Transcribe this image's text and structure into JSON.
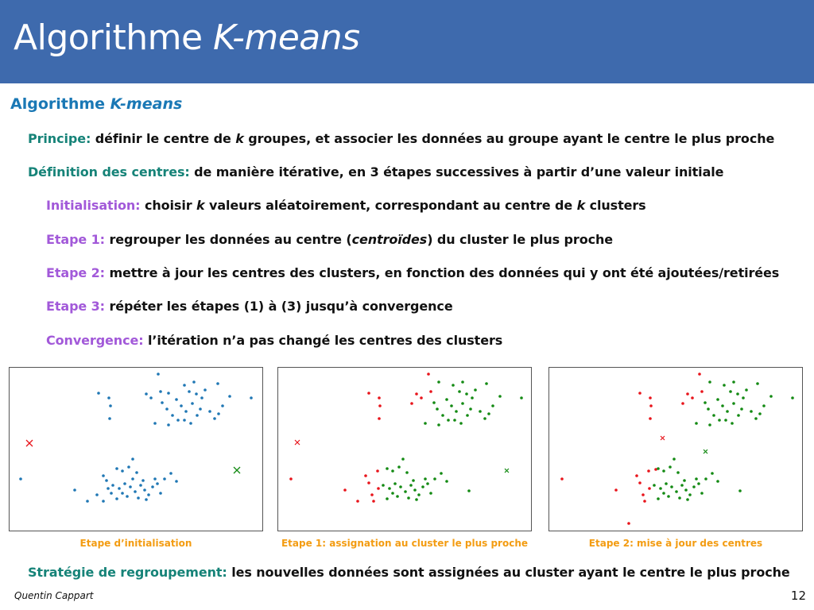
{
  "header": {
    "title_prefix": "Algorithme ",
    "title_italic": "K-means"
  },
  "block": {
    "title_prefix": "Algorithme ",
    "title_italic": "K-means"
  },
  "principe": {
    "label": "Principe:",
    "text1": " définir le centre de ",
    "k": "k",
    "text2": " groupes, et associer les données au groupe ayant le centre le plus proche"
  },
  "definition": {
    "label": "Définition des centres:",
    "text": " de manière itérative, en 3 étapes successives à partir d’une valeur initiale"
  },
  "init": {
    "label": "Initialisation:",
    "text1": " choisir ",
    "k1": "k",
    "text2": " valeurs aléatoirement, correspondant au centre de ",
    "k2": "k",
    "text3": " clusters"
  },
  "step1": {
    "label": "Etape 1:",
    "text1": " regrouper les données au centre (",
    "italic": "centroïdes",
    "text2": ") du cluster le plus proche"
  },
  "step2": {
    "label": "Etape 2:",
    "text": " mettre à jour les centres des clusters, en fonction des données qui y ont été ajoutées/retirées"
  },
  "step3": {
    "label": "Etape 3:",
    "text": " répéter les étapes (1) à (3) jusqu’à convergence"
  },
  "convergence": {
    "label": "Convergence:",
    "text": " l’itération n’a pas changé les centres des clusters"
  },
  "captions": {
    "plot1": "Etape d’initialisation",
    "plot2": "Etape 1: assignation au cluster le plus proche",
    "plot3": "Etape 2: mise à jour des centres"
  },
  "strategie": {
    "label": "Stratégie de regroupement:",
    "text": " les nouvelles données sont assignées au cluster ayant le centre le plus proche"
  },
  "footer": {
    "author": "Quentin Cappart",
    "page": "12"
  },
  "colors": {
    "title_bar": "#3e6aad",
    "block_title": "#1a78b5",
    "teal_label": "#168378",
    "purple_label": "#a259d9",
    "caption": "#f39c12",
    "blue_points": "#1f77b4",
    "red": "#e8141b",
    "green": "#138a13"
  }
}
